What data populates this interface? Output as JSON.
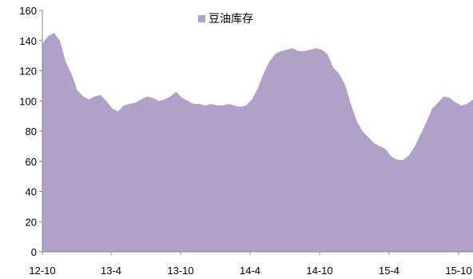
{
  "chart_data": {
    "type": "area",
    "title": "",
    "xlabel": "",
    "ylabel": "",
    "ylim": [
      0,
      160
    ],
    "y_ticks": [
      0,
      20,
      40,
      60,
      80,
      100,
      120,
      140,
      160
    ],
    "x_tick_labels": [
      "12-10",
      "13-4",
      "13-10",
      "14-4",
      "14-10",
      "15-4",
      "15-10"
    ],
    "grid": false,
    "legend_position": "top-center",
    "series": [
      {
        "name": "豆油库存",
        "color": "#b1a1c9",
        "x": [
          "2012-10",
          "2012-10",
          "2012-11",
          "2012-11",
          "2012-11",
          "2012-12",
          "2012-12",
          "2013-01",
          "2013-01",
          "2013-02",
          "2013-02",
          "2013-03",
          "2013-03",
          "2013-04",
          "2013-04",
          "2013-05",
          "2013-05",
          "2013-06",
          "2013-06",
          "2013-07",
          "2013-07",
          "2013-08",
          "2013-08",
          "2013-09",
          "2013-09",
          "2013-10",
          "2013-10",
          "2013-11",
          "2013-11",
          "2013-12",
          "2013-12",
          "2014-01",
          "2014-01",
          "2014-02",
          "2014-02",
          "2014-03",
          "2014-03",
          "2014-04",
          "2014-04",
          "2014-05",
          "2014-05",
          "2014-06",
          "2014-06",
          "2014-07",
          "2014-07",
          "2014-08",
          "2014-08",
          "2014-09",
          "2014-09",
          "2014-10",
          "2014-10",
          "2014-11",
          "2014-11",
          "2014-12",
          "2014-12",
          "2015-01",
          "2015-01",
          "2015-02",
          "2015-02",
          "2015-03",
          "2015-03",
          "2015-04",
          "2015-04",
          "2015-05",
          "2015-05",
          "2015-06",
          "2015-06",
          "2015-07",
          "2015-07",
          "2015-08",
          "2015-08",
          "2015-09",
          "2015-09",
          "2015-10",
          "2015-10"
        ],
        "values": [
          138,
          143,
          145,
          140,
          126,
          118,
          107,
          103,
          101,
          103,
          104,
          100,
          95,
          93,
          97,
          98,
          99,
          101,
          103,
          102,
          100,
          101,
          103,
          106,
          102,
          100,
          98,
          98,
          97,
          98,
          97,
          97,
          98,
          97,
          96,
          97,
          101,
          108,
          118,
          126,
          131,
          133,
          134,
          135,
          133,
          133,
          134,
          135,
          134,
          131,
          122,
          118,
          111,
          98,
          87,
          80,
          76,
          72,
          70,
          68,
          63,
          61,
          61,
          64,
          70,
          78,
          86,
          95,
          99,
          103,
          102,
          99,
          97,
          98,
          101
        ]
      }
    ]
  }
}
